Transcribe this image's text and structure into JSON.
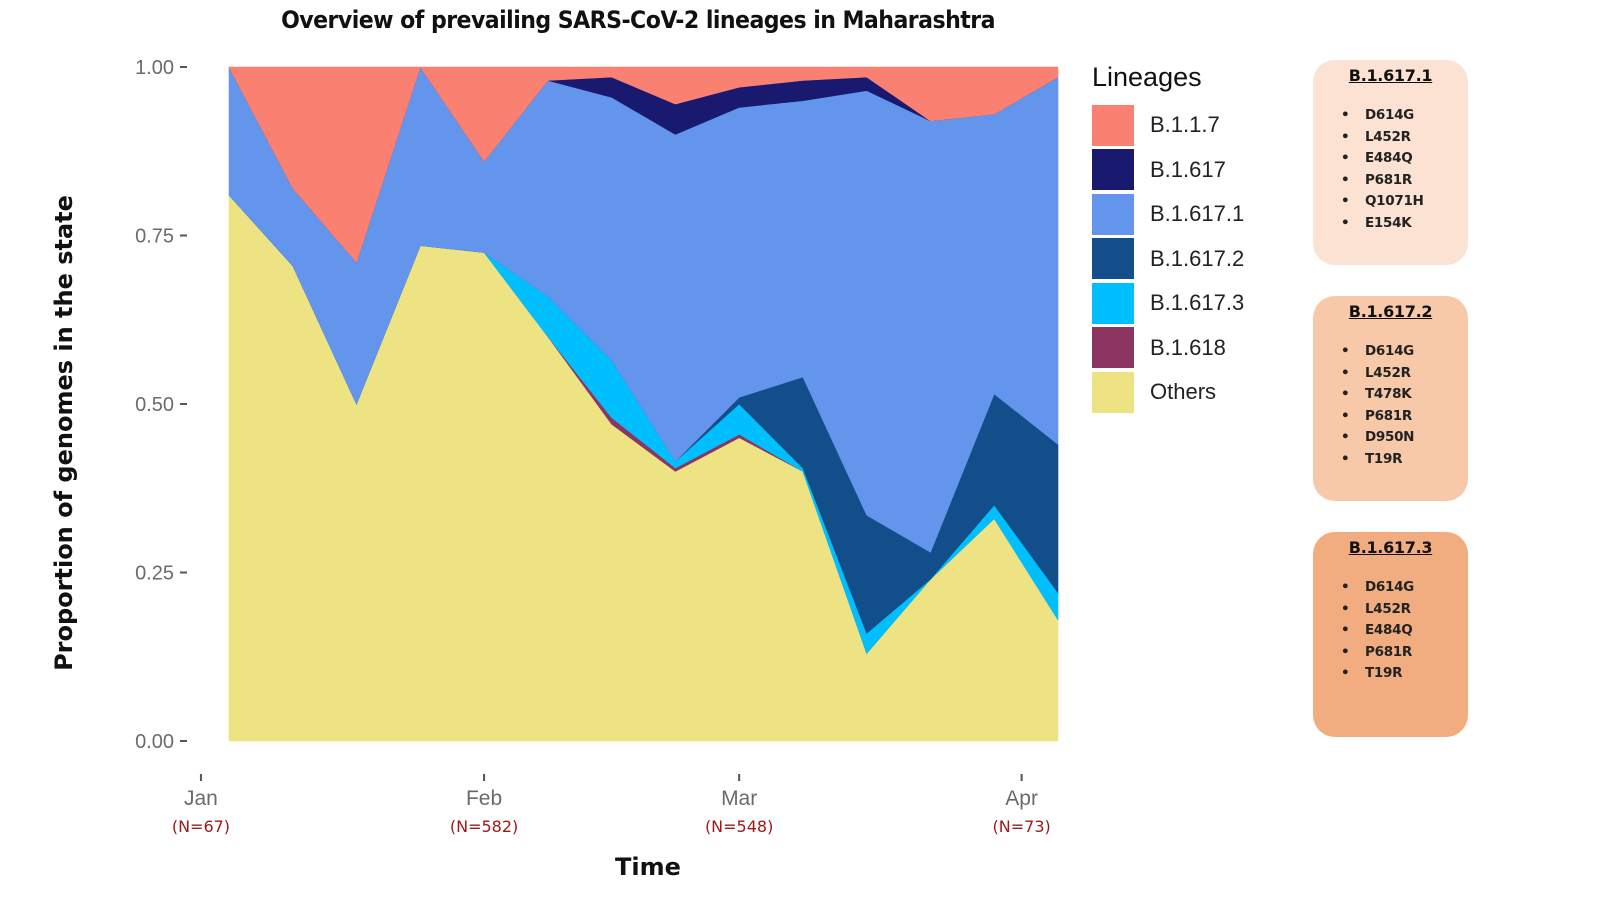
{
  "chart_data": {
    "type": "area",
    "stacked": true,
    "title": "Overview of prevailing SARS-CoV-2 lineages in Maharashtra",
    "xlabel": "Time",
    "ylabel": "Proportion of genomes in the state",
    "ylim": [
      0,
      1
    ],
    "y_ticks": [
      "0.00",
      "0.25",
      "0.50",
      "0.75",
      "1.00"
    ],
    "y_tick_values": [
      0,
      0.25,
      0.5,
      0.75,
      1.0
    ],
    "x_ticks": [
      {
        "label": "Jan",
        "n_label": "(N=67)",
        "week": -0.44
      },
      {
        "label": "Feb",
        "n_label": "(N=582)",
        "week": 4.0
      },
      {
        "label": "Mar",
        "n_label": "(N=548)",
        "week": 8.0
      },
      {
        "label": "Apr",
        "n_label": "(N=73)",
        "week": 12.43
      }
    ],
    "x_weeks": [
      0,
      1,
      2,
      3,
      4,
      5,
      6,
      7,
      8,
      9,
      10,
      11,
      12,
      13
    ],
    "legend_title": "Lineages",
    "legend_position": "right",
    "grid": false,
    "series": [
      {
        "name": "Others",
        "color": "#EDE382",
        "values": [
          0.81,
          0.705,
          0.5,
          0.735,
          0.725,
          0.6,
          0.47,
          0.4,
          0.45,
          0.4,
          0.13,
          0.24,
          0.33,
          0.18
        ]
      },
      {
        "name": "B.1.618",
        "color": "#8B3560",
        "values": [
          0.0,
          0.0,
          0.0,
          0.0,
          0.0,
          0.0,
          0.01,
          0.005,
          0.005,
          0.0,
          0.0,
          0.0,
          0.0,
          0.0
        ]
      },
      {
        "name": "B.1.617.3",
        "color": "#00BFFF",
        "values": [
          0.0,
          0.0,
          0.0,
          0.0,
          0.0,
          0.06,
          0.085,
          0.01,
          0.045,
          0.005,
          0.03,
          0.0,
          0.02,
          0.04
        ]
      },
      {
        "name": "B.1.617.2",
        "color": "#124E89",
        "values": [
          0.0,
          0.0,
          0.0,
          0.0,
          0.0,
          0.0,
          0.0,
          0.0,
          0.01,
          0.135,
          0.175,
          0.04,
          0.165,
          0.22
        ]
      },
      {
        "name": "B.1.617.1",
        "color": "#6495ED",
        "values": [
          0.19,
          0.115,
          0.21,
          0.265,
          0.135,
          0.32,
          0.39,
          0.485,
          0.43,
          0.41,
          0.63,
          0.64,
          0.415,
          0.545
        ]
      },
      {
        "name": "B.1.617",
        "color": "#191970",
        "values": [
          0.0,
          0.0,
          0.0,
          0.0,
          0.0,
          0.0,
          0.03,
          0.045,
          0.03,
          0.03,
          0.02,
          0.0,
          0.0,
          0.0
        ]
      },
      {
        "name": "B.1.1.7",
        "color": "#FA8072",
        "values": [
          0.0,
          0.18,
          0.29,
          0.0,
          0.14,
          0.02,
          0.015,
          0.055,
          0.03,
          0.02,
          0.015,
          0.08,
          0.07,
          0.015
        ]
      }
    ]
  },
  "legend_order": [
    "B.1.1.7",
    "B.1.617",
    "B.1.617.1",
    "B.1.617.2",
    "B.1.617.3",
    "B.1.618",
    "Others"
  ],
  "mutation_boxes": [
    {
      "title": "B.1.617.1",
      "color": "#FBE2D3",
      "mutations": [
        "D614G",
        "L452R",
        "E484Q",
        "P681R",
        "Q1071H",
        "E154K"
      ]
    },
    {
      "title": "B.1.617.2",
      "color": "#F8C9A8",
      "mutations": [
        "D614G",
        "L452R",
        "T478K",
        "P681R",
        "D950N",
        "T19R"
      ]
    },
    {
      "title": "B.1.617.3",
      "color": "#F1AD7F",
      "mutations": [
        "D614G",
        "L452R",
        "E484Q",
        "P681R",
        "T19R"
      ]
    }
  ],
  "bullet_char": "•"
}
